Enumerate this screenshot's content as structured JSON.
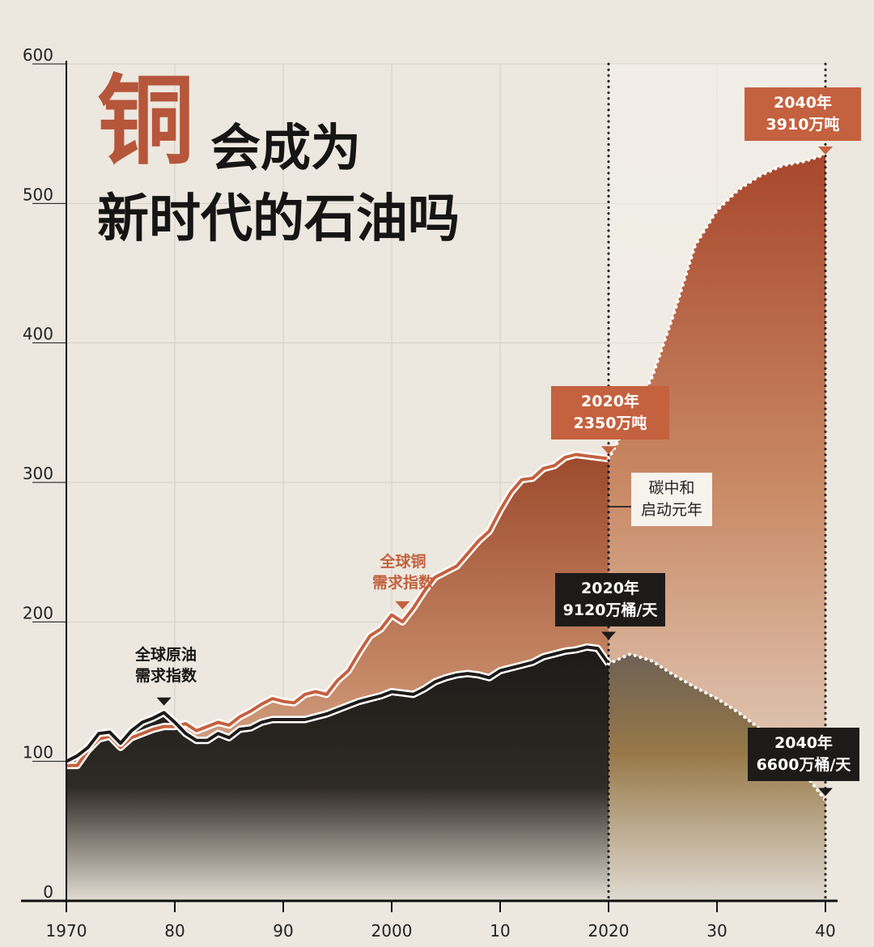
{
  "title": {
    "highlight": "铜",
    "line1": "会成为",
    "line2": "新时代的石油吗"
  },
  "colors": {
    "background": "#ece8df",
    "copper": "#c4613f",
    "copper_dark": "#a8472c",
    "oil": "#1d1b19",
    "oil_gold": "#8a6a35"
  },
  "annotations": {
    "copper_2020": {
      "line1": "2020年",
      "line2": "2350万吨"
    },
    "copper_2040": {
      "line1": "2040年",
      "line2": "3910万吨"
    },
    "oil_2020": {
      "line1": "2020年",
      "line2": "9120万桶/天"
    },
    "oil_2040": {
      "line1": "2040年",
      "line2": "6600万桶/天"
    },
    "carbon_neutral": {
      "line1": "碳中和",
      "line2": "启动元年"
    },
    "copper_series_label": {
      "line1": "全球铜",
      "line2": "需求指数"
    },
    "oil_series_label": {
      "line1": "全球原油",
      "line2": "需求指数"
    }
  },
  "chart_data": {
    "type": "area",
    "xlim": [
      1970,
      2040
    ],
    "ylim": [
      0,
      600
    ],
    "x_ticks": [
      1970,
      1980,
      1990,
      2000,
      2010,
      2020,
      2030,
      2040
    ],
    "x_tick_labels": [
      "1970",
      "80",
      "90",
      "2000",
      "10",
      "2020",
      "30",
      "40"
    ],
    "y_ticks": [
      0,
      100,
      200,
      300,
      400,
      500,
      600
    ],
    "y_tick_labels": [
      "0",
      "100",
      "200",
      "300",
      "400",
      "500",
      "600"
    ],
    "grid": true,
    "reference_lines": [
      2020,
      2040
    ],
    "series": [
      {
        "name": "全球铜需求指数",
        "color": "#c4613f",
        "historical": [
          [
            1970,
            97
          ],
          [
            1971,
            97
          ],
          [
            1972,
            108
          ],
          [
            1973,
            116
          ],
          [
            1974,
            118
          ],
          [
            1975,
            110
          ],
          [
            1976,
            117
          ],
          [
            1977,
            120
          ],
          [
            1978,
            123
          ],
          [
            1979,
            125
          ],
          [
            1980,
            125
          ],
          [
            1981,
            127
          ],
          [
            1982,
            122
          ],
          [
            1983,
            125
          ],
          [
            1984,
            128
          ],
          [
            1985,
            126
          ],
          [
            1986,
            132
          ],
          [
            1987,
            136
          ],
          [
            1988,
            141
          ],
          [
            1989,
            145
          ],
          [
            1990,
            143
          ],
          [
            1991,
            142
          ],
          [
            1992,
            148
          ],
          [
            1993,
            150
          ],
          [
            1994,
            148
          ],
          [
            1995,
            158
          ],
          [
            1996,
            165
          ],
          [
            1997,
            178
          ],
          [
            1998,
            190
          ],
          [
            1999,
            195
          ],
          [
            2000,
            205
          ],
          [
            2001,
            200
          ],
          [
            2002,
            210
          ],
          [
            2003,
            222
          ],
          [
            2004,
            232
          ],
          [
            2005,
            236
          ],
          [
            2006,
            240
          ],
          [
            2007,
            249
          ],
          [
            2008,
            258
          ],
          [
            2009,
            265
          ],
          [
            2010,
            280
          ],
          [
            2011,
            293
          ],
          [
            2012,
            302
          ],
          [
            2013,
            303
          ],
          [
            2014,
            310
          ],
          [
            2015,
            312
          ],
          [
            2016,
            318
          ],
          [
            2017,
            320
          ],
          [
            2018,
            319
          ],
          [
            2019,
            318
          ],
          [
            2020,
            317
          ]
        ],
        "projection": [
          [
            2020,
            317
          ],
          [
            2022,
            345
          ],
          [
            2024,
            375
          ],
          [
            2026,
            420
          ],
          [
            2028,
            470
          ],
          [
            2030,
            495
          ],
          [
            2032,
            510
          ],
          [
            2034,
            520
          ],
          [
            2036,
            527
          ],
          [
            2038,
            530
          ],
          [
            2040,
            535
          ]
        ]
      },
      {
        "name": "全球原油需求指数",
        "color": "#1d1b19",
        "historical": [
          [
            1970,
            100
          ],
          [
            1971,
            104
          ],
          [
            1972,
            110
          ],
          [
            1973,
            120
          ],
          [
            1974,
            121
          ],
          [
            1975,
            113
          ],
          [
            1976,
            122
          ],
          [
            1977,
            128
          ],
          [
            1978,
            131
          ],
          [
            1979,
            135
          ],
          [
            1980,
            128
          ],
          [
            1981,
            120
          ],
          [
            1982,
            115
          ],
          [
            1983,
            115
          ],
          [
            1984,
            120
          ],
          [
            1985,
            117
          ],
          [
            1986,
            123
          ],
          [
            1987,
            124
          ],
          [
            1988,
            128
          ],
          [
            1989,
            130
          ],
          [
            1990,
            130
          ],
          [
            1991,
            130
          ],
          [
            1992,
            130
          ],
          [
            1993,
            132
          ],
          [
            1994,
            134
          ],
          [
            1995,
            137
          ],
          [
            1996,
            140
          ],
          [
            1997,
            143
          ],
          [
            1998,
            145
          ],
          [
            1999,
            147
          ],
          [
            2000,
            150
          ],
          [
            2001,
            149
          ],
          [
            2002,
            148
          ],
          [
            2003,
            152
          ],
          [
            2004,
            157
          ],
          [
            2005,
            160
          ],
          [
            2006,
            162
          ],
          [
            2007,
            163
          ],
          [
            2008,
            162
          ],
          [
            2009,
            160
          ],
          [
            2010,
            165
          ],
          [
            2011,
            167
          ],
          [
            2012,
            169
          ],
          [
            2013,
            171
          ],
          [
            2014,
            175
          ],
          [
            2015,
            177
          ],
          [
            2016,
            179
          ],
          [
            2017,
            180
          ],
          [
            2018,
            182
          ],
          [
            2019,
            181
          ],
          [
            2020,
            170
          ]
        ],
        "projection": [
          [
            2020,
            170
          ],
          [
            2022,
            177
          ],
          [
            2024,
            172
          ],
          [
            2026,
            162
          ],
          [
            2028,
            153
          ],
          [
            2030,
            145
          ],
          [
            2032,
            135
          ],
          [
            2034,
            123
          ],
          [
            2036,
            108
          ],
          [
            2038,
            92
          ],
          [
            2040,
            72
          ]
        ]
      }
    ]
  }
}
